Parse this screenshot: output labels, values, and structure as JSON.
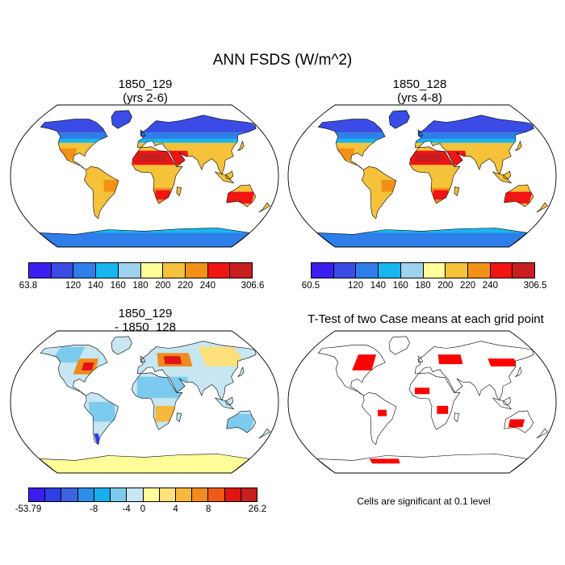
{
  "title": "ANN FSDS (W/m^2)",
  "panels": [
    {
      "id": "top-left",
      "title_line1": "1850_129",
      "title_line2": "(yrs 2-6)",
      "colorbar": {
        "colors": [
          "#3c1ef0",
          "#3a4be6",
          "#2e7fea",
          "#18b6f0",
          "#9fd2ee",
          "#ffff9a",
          "#f6c23a",
          "#f39116",
          "#f01414",
          "#c81e1e"
        ],
        "labels": [
          "63.8",
          "120",
          "140",
          "160",
          "180",
          "200",
          "220",
          "240",
          "306.6"
        ],
        "label_positions": [
          0,
          2,
          3,
          4,
          5,
          6,
          7,
          8,
          10
        ]
      }
    },
    {
      "id": "top-right",
      "title_line1": "1850_128",
      "title_line2": "(yrs 4-8)",
      "colorbar": {
        "colors": [
          "#3c1ef0",
          "#3a4be6",
          "#2e7fea",
          "#18b6f0",
          "#9fd2ee",
          "#ffff9a",
          "#f6c23a",
          "#f39116",
          "#f01414",
          "#c81e1e"
        ],
        "labels": [
          "60.5",
          "120",
          "140",
          "160",
          "180",
          "200",
          "220",
          "240",
          "306.5"
        ],
        "label_positions": [
          0,
          2,
          3,
          4,
          5,
          6,
          7,
          8,
          10
        ]
      }
    },
    {
      "id": "bottom-left",
      "title_line1": "1850_129",
      "title_line2": "- 1850_128",
      "colorbar": {
        "colors": [
          "#3c1ef0",
          "#2e3ee6",
          "#3a64e0",
          "#2e8ce8",
          "#18b0ec",
          "#7ccbee",
          "#c6e6f2",
          "#ffff9a",
          "#ffe07a",
          "#f6b83a",
          "#f28a1e",
          "#f05a14",
          "#e01414",
          "#c81e1e"
        ],
        "labels": [
          "-53.79",
          "-8",
          "-4",
          "0",
          "4",
          "8",
          "26.2"
        ],
        "label_positions": [
          0,
          4,
          6,
          7,
          9,
          11,
          14
        ]
      }
    },
    {
      "id": "bottom-right",
      "title_line1": "T-Test of two Case means at each grid point",
      "note": "Cells are significant at 0.1 level"
    }
  ]
}
